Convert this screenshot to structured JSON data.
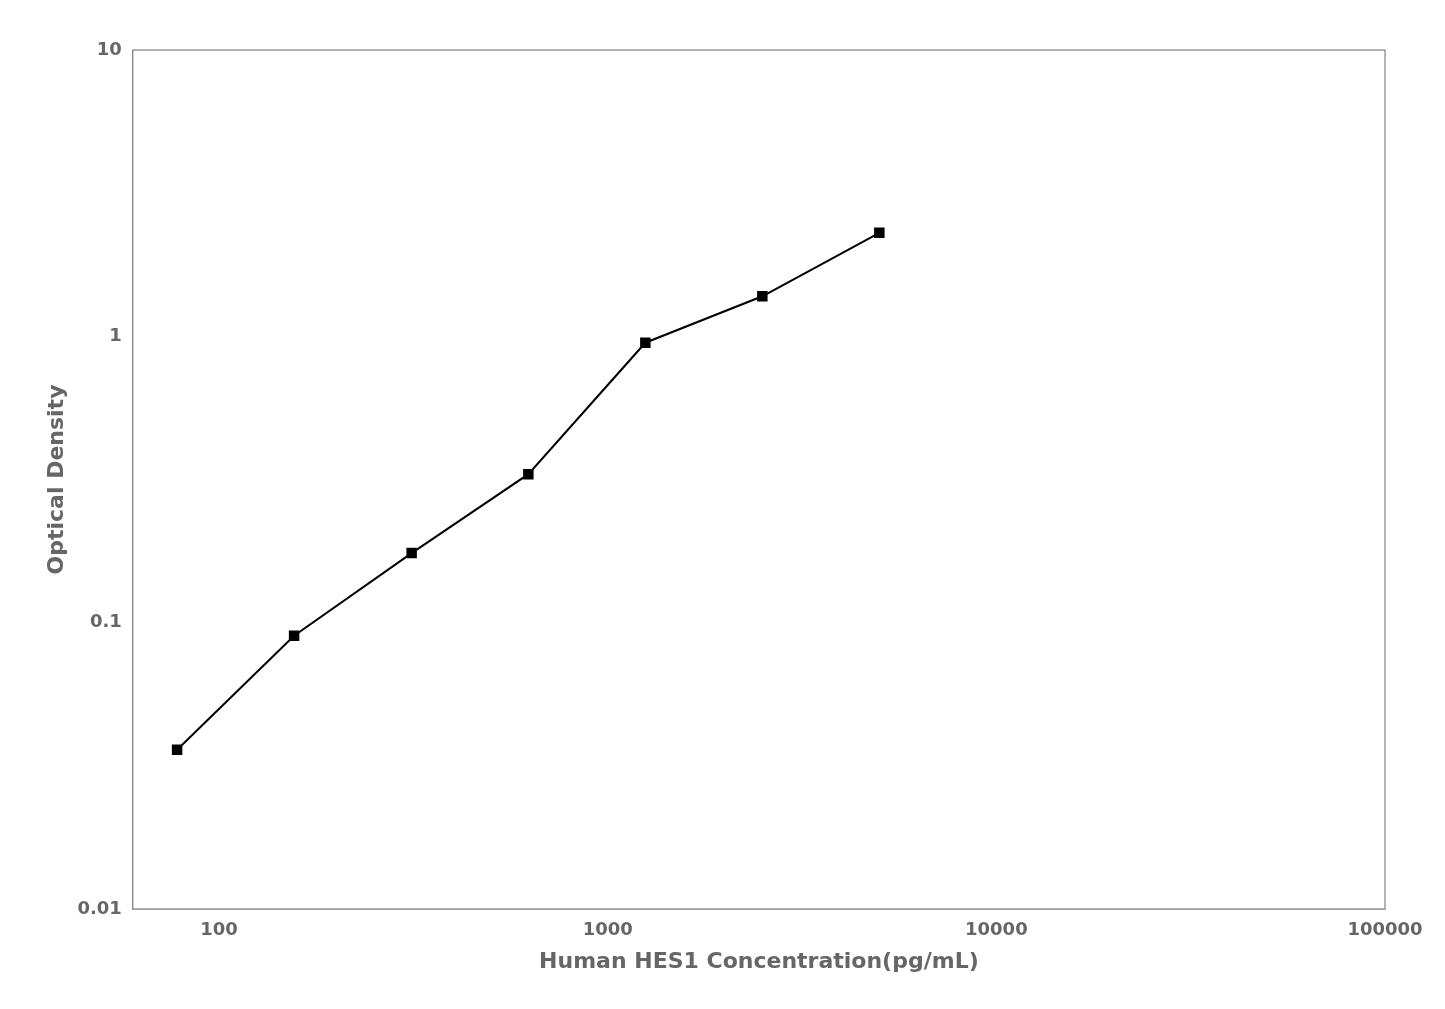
{
  "chart_data": {
    "type": "line",
    "x": [
      78,
      156,
      313,
      625,
      1250,
      2500,
      5000
    ],
    "values": [
      0.036,
      0.09,
      0.175,
      0.33,
      0.95,
      1.38,
      2.3
    ],
    "xlabel": "Human HES1 Concentration(pg/mL)",
    "ylabel": "Optical Density",
    "xlim": [
      60,
      100000
    ],
    "ylim": [
      0.01,
      10
    ],
    "xticks": [
      100,
      1000,
      10000,
      100000
    ],
    "yticks": [
      0.01,
      0.1,
      1,
      10
    ],
    "log": true,
    "grid": false,
    "color": "#000000",
    "marker": "square"
  }
}
